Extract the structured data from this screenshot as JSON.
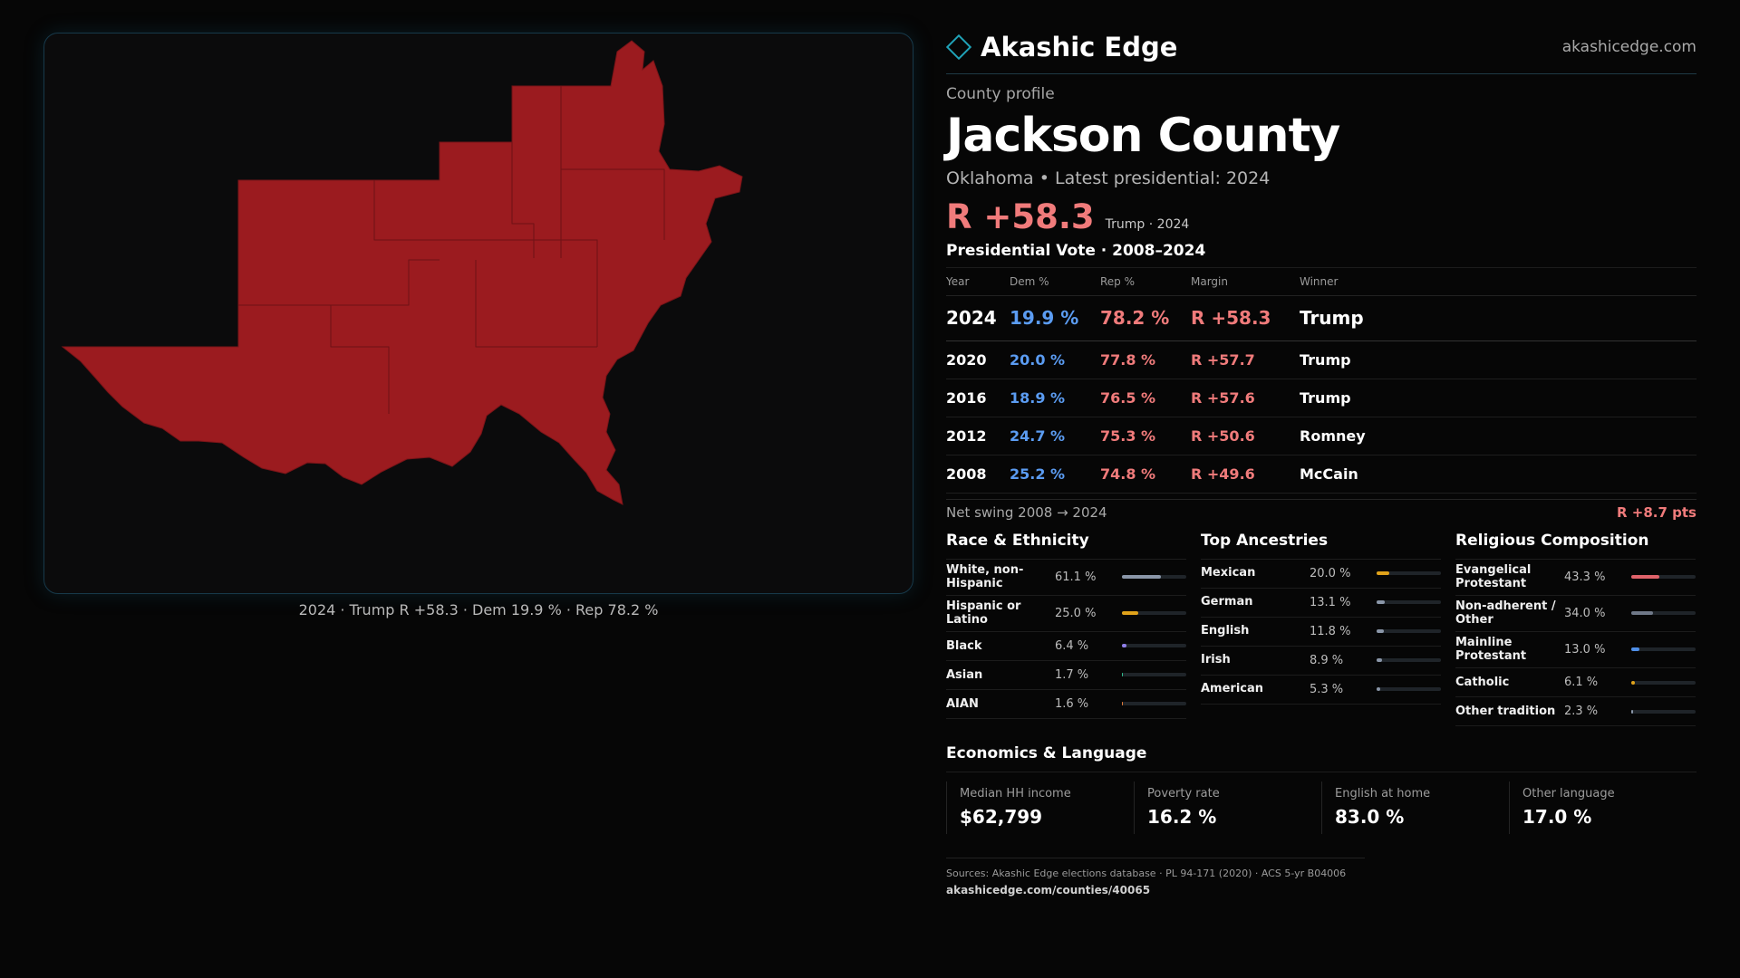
{
  "header": {
    "brand": "Akashic Edge",
    "site": "akashicedge.com"
  },
  "profile": {
    "kicker": "County profile",
    "title": "Jackson County",
    "subtitle": "Oklahoma • Latest presidential: 2024",
    "margin": "R +58.3",
    "margin_note": "Trump · 2024"
  },
  "map": {
    "caption": "2024 · Trump R +58.3 · Dem 19.9 % · Rep 78.2 %",
    "fill_color": "#9b1b1f"
  },
  "vote": {
    "title": "Presidential Vote · 2008–2024",
    "headers": [
      "Year",
      "Dem %",
      "Rep %",
      "Margin",
      "Winner"
    ],
    "rows": [
      {
        "year": "2024",
        "dem": "19.9 %",
        "rep": "78.2 %",
        "margin": "R +58.3",
        "winner": "Trump"
      },
      {
        "year": "2020",
        "dem": "20.0 %",
        "rep": "77.8 %",
        "margin": "R +57.7",
        "winner": "Trump"
      },
      {
        "year": "2016",
        "dem": "18.9 %",
        "rep": "76.5 %",
        "margin": "R +57.6",
        "winner": "Trump"
      },
      {
        "year": "2012",
        "dem": "24.7 %",
        "rep": "75.3 %",
        "margin": "R +50.6",
        "winner": "Romney"
      },
      {
        "year": "2008",
        "dem": "25.2 %",
        "rep": "74.8 %",
        "margin": "R +49.6",
        "winner": "McCain"
      }
    ],
    "swing_label": "Net swing 2008 → 2024",
    "swing_value": "R +8.7 pts"
  },
  "race": {
    "title": "Race & Ethnicity",
    "items": [
      {
        "label": "White, non-Hispanic",
        "pct": "61.1 %",
        "value": 61.1,
        "color": "#8a96a8"
      },
      {
        "label": "Hispanic or Latino",
        "pct": "25.0 %",
        "value": 25.0,
        "color": "#e0a21a"
      },
      {
        "label": "Black",
        "pct": "6.4 %",
        "value": 6.4,
        "color": "#8f7ee8"
      },
      {
        "label": "Asian",
        "pct": "1.7 %",
        "value": 1.7,
        "color": "#2fbf8f"
      },
      {
        "label": "AIAN",
        "pct": "1.6 %",
        "value": 1.6,
        "color": "#e07a3a"
      }
    ]
  },
  "ancestry": {
    "title": "Top Ancestries",
    "items": [
      {
        "label": "Mexican",
        "pct": "20.0 %",
        "value": 20.0,
        "color": "#e0a21a"
      },
      {
        "label": "German",
        "pct": "13.1 %",
        "value": 13.1,
        "color": "#8a96a8"
      },
      {
        "label": "English",
        "pct": "11.8 %",
        "value": 11.8,
        "color": "#8a96a8"
      },
      {
        "label": "Irish",
        "pct": "8.9 %",
        "value": 8.9,
        "color": "#8a96a8"
      },
      {
        "label": "American",
        "pct": "5.3 %",
        "value": 5.3,
        "color": "#8a96a8"
      }
    ]
  },
  "religion": {
    "title": "Religious Composition",
    "items": [
      {
        "label": "Evangelical Protestant",
        "pct": "43.3 %",
        "value": 43.3,
        "color": "#e0626a"
      },
      {
        "label": "Non-adherent / Other",
        "pct": "34.0 %",
        "value": 34.0,
        "color": "#6f7888"
      },
      {
        "label": "Mainline Protestant",
        "pct": "13.0 %",
        "value": 13.0,
        "color": "#4f8fe8"
      },
      {
        "label": "Catholic",
        "pct": "6.1 %",
        "value": 6.1,
        "color": "#e0a21a"
      },
      {
        "label": "Other tradition",
        "pct": "2.3 %",
        "value": 2.3,
        "color": "#8a96a8"
      }
    ]
  },
  "economics": {
    "title": "Economics & Language",
    "items": [
      {
        "label": "Median HH income",
        "value": "$62,799"
      },
      {
        "label": "Poverty rate",
        "value": "16.2 %"
      },
      {
        "label": "English at home",
        "value": "83.0 %"
      },
      {
        "label": "Other language",
        "value": "17.0 %"
      }
    ]
  },
  "sources": {
    "text": "Sources: Akashic Edge elections database · PL 94-171 (2020) · ACS 5-yr B04006",
    "url": "akashicedge.com/counties/40065"
  }
}
